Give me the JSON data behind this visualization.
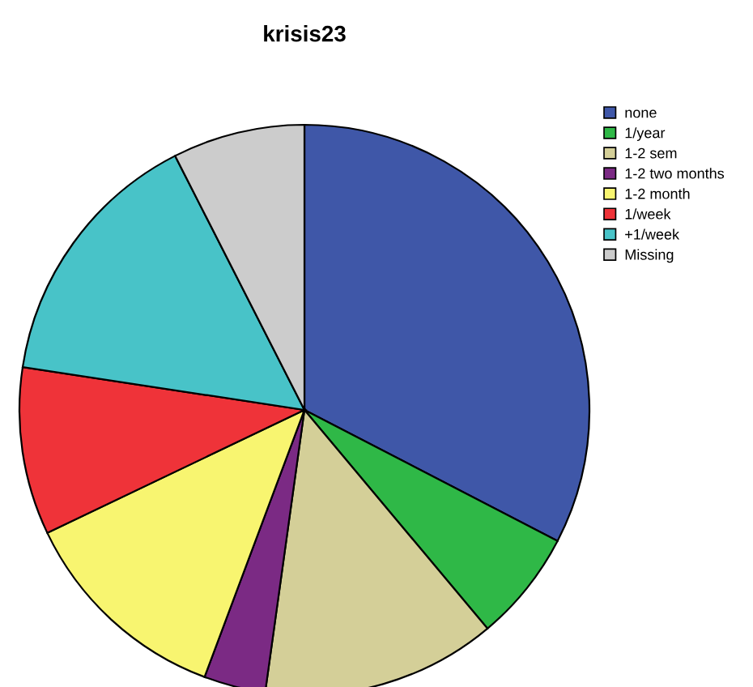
{
  "chart_data": {
    "type": "pie",
    "title": "krisis23",
    "categories": [
      "none",
      "1/year",
      "1-2 sem",
      "1-2 two months",
      "1-2 month",
      "1/week",
      "+1/week",
      "Missing"
    ],
    "values": [
      32.6,
      6.3,
      13.3,
      3.5,
      12.2,
      9.5,
      15.1,
      7.5
    ],
    "colors": [
      "#3f57a8",
      "#2fb847",
      "#d4cf98",
      "#7b2a84",
      "#f8f570",
      "#ef3339",
      "#48c3c8",
      "#cccccc"
    ],
    "legend": "top right"
  }
}
